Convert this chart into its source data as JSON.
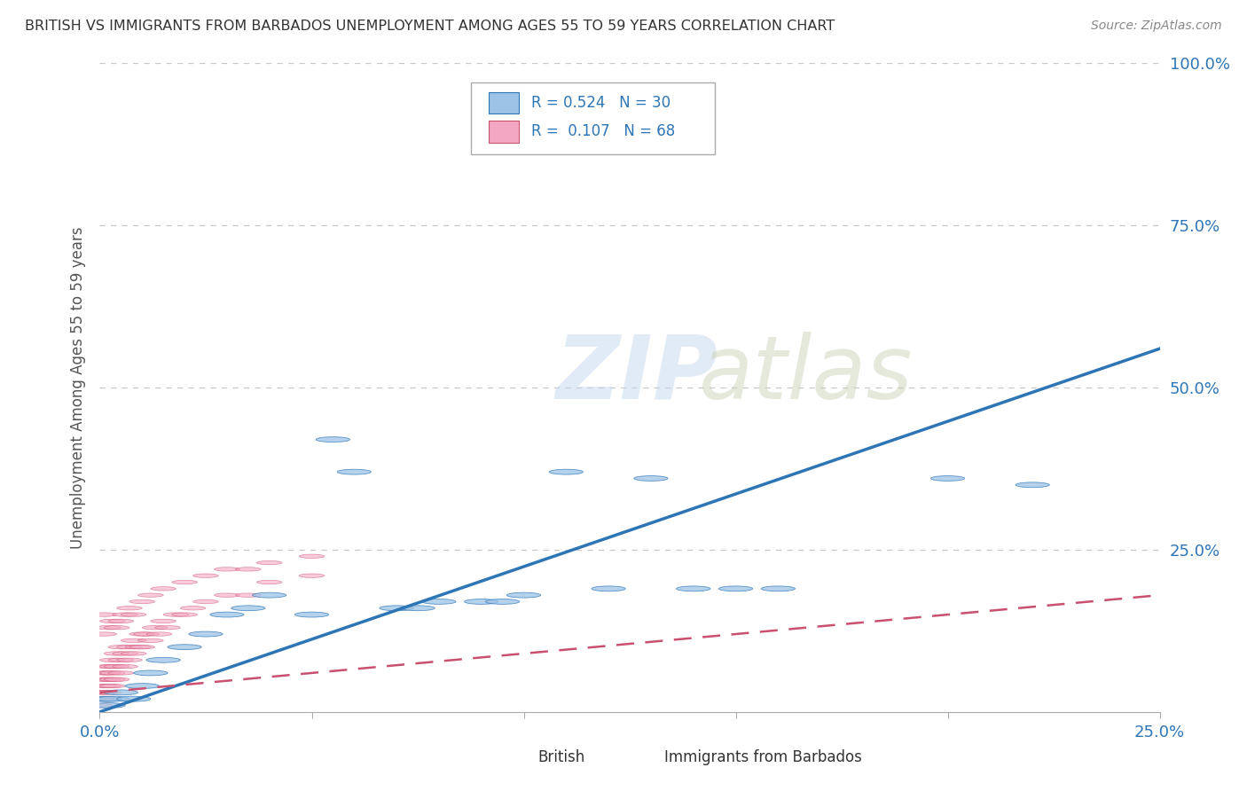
{
  "title": "BRITISH VS IMMIGRANTS FROM BARBADOS UNEMPLOYMENT AMONG AGES 55 TO 59 YEARS CORRELATION CHART",
  "source": "Source: ZipAtlas.com",
  "ylabel": "Unemployment Among Ages 55 to 59 years",
  "xlim": [
    0.0,
    0.25
  ],
  "ylim": [
    0.0,
    1.0
  ],
  "xticks": [
    0.0,
    0.05,
    0.1,
    0.15,
    0.2,
    0.25
  ],
  "yticks": [
    0.0,
    0.25,
    0.5,
    0.75,
    1.0
  ],
  "xticklabels": [
    "0.0%",
    "",
    "",
    "",
    "",
    "25.0%"
  ],
  "yticklabels": [
    "",
    "25.0%",
    "50.0%",
    "75.0%",
    "100.0%"
  ],
  "british_R": 0.524,
  "british_N": 30,
  "immigrant_R": 0.107,
  "immigrant_N": 68,
  "british_color": "#9dc3e6",
  "british_edge_color": "#2e75b6",
  "british_line_color": "#2e75b6",
  "immigrant_color": "#f4a7c3",
  "immigrant_edge_color": "#c9506e",
  "immigrant_line_color": "#c9506e",
  "background_color": "#ffffff",
  "grid_color": "#c8c8c8",
  "legend_text_color": "#2e75b6",
  "british_line": [
    0.0,
    0.0,
    0.25,
    0.56
  ],
  "immigrant_line": [
    0.0,
    0.03,
    0.25,
    0.18
  ],
  "british_x": [
    0.001,
    0.002,
    0.003,
    0.005,
    0.008,
    0.01,
    0.012,
    0.015,
    0.02,
    0.025,
    0.03,
    0.035,
    0.04,
    0.05,
    0.055,
    0.06,
    0.07,
    0.075,
    0.08,
    0.09,
    0.095,
    0.1,
    0.11,
    0.12,
    0.13,
    0.14,
    0.15,
    0.16,
    0.2,
    0.22
  ],
  "british_y": [
    0.02,
    0.01,
    0.02,
    0.03,
    0.02,
    0.04,
    0.06,
    0.08,
    0.1,
    0.12,
    0.15,
    0.16,
    0.18,
    0.15,
    0.42,
    0.37,
    0.16,
    0.16,
    0.17,
    0.17,
    0.17,
    0.18,
    0.37,
    0.19,
    0.36,
    0.19,
    0.19,
    0.19,
    0.36,
    0.35
  ],
  "immigrant_x": [
    0.0,
    0.0,
    0.0,
    0.001,
    0.001,
    0.001,
    0.001,
    0.001,
    0.001,
    0.001,
    0.002,
    0.002,
    0.002,
    0.002,
    0.002,
    0.002,
    0.003,
    0.003,
    0.003,
    0.003,
    0.003,
    0.004,
    0.004,
    0.004,
    0.005,
    0.005,
    0.005,
    0.006,
    0.006,
    0.007,
    0.007,
    0.008,
    0.008,
    0.009,
    0.01,
    0.01,
    0.011,
    0.012,
    0.013,
    0.014,
    0.015,
    0.016,
    0.018,
    0.02,
    0.022,
    0.025,
    0.03,
    0.035,
    0.04,
    0.05,
    0.001,
    0.001,
    0.002,
    0.003,
    0.004,
    0.005,
    0.006,
    0.007,
    0.008,
    0.01,
    0.012,
    0.015,
    0.02,
    0.025,
    0.03,
    0.035,
    0.04,
    0.05
  ],
  "immigrant_y": [
    0.02,
    0.03,
    0.01,
    0.02,
    0.03,
    0.04,
    0.02,
    0.05,
    0.03,
    0.06,
    0.02,
    0.04,
    0.05,
    0.03,
    0.06,
    0.07,
    0.04,
    0.06,
    0.07,
    0.05,
    0.08,
    0.05,
    0.07,
    0.09,
    0.06,
    0.08,
    0.1,
    0.07,
    0.09,
    0.08,
    0.1,
    0.09,
    0.11,
    0.1,
    0.1,
    0.12,
    0.12,
    0.11,
    0.13,
    0.12,
    0.14,
    0.13,
    0.15,
    0.15,
    0.16,
    0.17,
    0.18,
    0.18,
    0.2,
    0.21,
    0.15,
    0.12,
    0.13,
    0.14,
    0.13,
    0.14,
    0.15,
    0.16,
    0.15,
    0.17,
    0.18,
    0.19,
    0.2,
    0.21,
    0.22,
    0.22,
    0.23,
    0.24
  ]
}
